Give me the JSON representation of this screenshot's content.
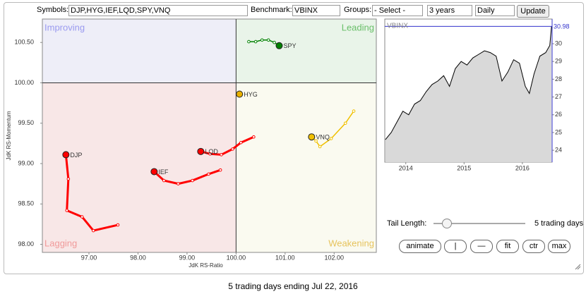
{
  "toolbar": {
    "symbols_label": "Symbols:",
    "symbols": "DJP,HYG,IEF,LQD,SPY,VNQ",
    "benchmark_label": "Benchmark:",
    "benchmark": "VBINX",
    "groups_label": "Groups:",
    "groups": "- Select -",
    "period": "3 years",
    "frequency": "Daily",
    "update": "Update"
  },
  "chart_data": [
    {
      "type": "scatter",
      "x_label": "JdK RS-Ratio",
      "y_label": "JdK RS-Momentum",
      "center": {
        "x": 100,
        "y": 100
      },
      "quadrants": [
        {
          "label": "Improving",
          "fill": "#eeeef8",
          "color": "#9a9af0"
        },
        {
          "label": "Leading",
          "fill": "#e9f4e9",
          "color": "#6abf6a"
        },
        {
          "label": "Lagging",
          "fill": "#f8e7e7",
          "color": "#f09a9a"
        },
        {
          "label": "Weakening",
          "fill": "#fafaf0",
          "color": "#e6c35c"
        }
      ],
      "xlim": [
        96.05,
        102.86
      ],
      "ylim": [
        97.9,
        100.79
      ],
      "xticks": [
        {
          "value": 97,
          "label": "97.00"
        },
        {
          "value": 98,
          "label": "98.00"
        },
        {
          "value": 99,
          "label": "99.00"
        },
        {
          "value": 100,
          "label": "100.00"
        },
        {
          "value": 101,
          "label": "101.00"
        },
        {
          "value": 102,
          "label": "102.00"
        }
      ],
      "yticks": [
        {
          "value": 98,
          "label": "98.00"
        },
        {
          "value": 98.5,
          "label": "98.50"
        },
        {
          "value": 99,
          "label": "99.00"
        },
        {
          "value": 99.5,
          "label": "99.50"
        },
        {
          "value": 100,
          "label": "100.00"
        },
        {
          "value": 100.5,
          "label": "100.50"
        }
      ],
      "series": [
        {
          "name": "SPY",
          "color": "#008000",
          "x": [
            100.26,
            100.4,
            100.53,
            100.66,
            100.78,
            100.88
          ],
          "y": [
            100.51,
            100.51,
            100.53,
            100.53,
            100.5,
            100.46
          ]
        },
        {
          "name": "HYG",
          "color": "#e8b000",
          "x": [
            100.07
          ],
          "y": [
            99.86
          ]
        },
        {
          "name": "VNQ",
          "color": "#f0c000",
          "x": [
            102.4,
            102.23,
            101.94,
            101.71,
            101.63,
            101.54
          ],
          "y": [
            99.65,
            99.5,
            99.31,
            99.21,
            99.28,
            99.33
          ]
        },
        {
          "name": "LQD",
          "color": "#ff0000",
          "x": [
            100.36,
            100.1,
            99.93,
            99.7,
            99.47,
            99.28
          ],
          "y": [
            99.33,
            99.26,
            99.18,
            99.11,
            99.12,
            99.15
          ]
        },
        {
          "name": "IEF",
          "color": "#ff0000",
          "x": [
            99.68,
            99.44,
            99.11,
            98.82,
            98.53,
            98.33
          ],
          "y": [
            98.92,
            98.87,
            98.79,
            98.75,
            98.79,
            98.9
          ]
        },
        {
          "name": "DJP",
          "color": "#ff0000",
          "x": [
            97.59,
            97.09,
            96.86,
            96.55,
            96.58,
            96.53
          ],
          "y": [
            98.24,
            98.17,
            98.34,
            98.42,
            98.81,
            99.11
          ]
        }
      ]
    },
    {
      "type": "line",
      "title": "VBINX",
      "color": "#000000",
      "fill": "#d9d9d9",
      "axis_color": "#3333cc",
      "xlim": [
        2013.64,
        2016.51
      ],
      "ylim": [
        23.33,
        31.39
      ],
      "xticks": [
        2014,
        2015,
        2016
      ],
      "yticks": [
        24,
        25,
        26,
        27,
        28,
        29,
        30
      ],
      "x": [
        2013.65,
        2013.75,
        2013.85,
        2013.95,
        2014.05,
        2014.15,
        2014.25,
        2014.35,
        2014.45,
        2014.55,
        2014.65,
        2014.75,
        2014.85,
        2014.95,
        2015.05,
        2015.15,
        2015.25,
        2015.35,
        2015.45,
        2015.55,
        2015.65,
        2015.75,
        2015.85,
        2015.95,
        2016.05,
        2016.12,
        2016.2,
        2016.3,
        2016.4,
        2016.47,
        2016.5
      ],
      "values": [
        24.6,
        25.0,
        25.6,
        26.2,
        26.0,
        26.6,
        26.8,
        27.3,
        27.7,
        27.9,
        28.2,
        27.6,
        28.6,
        29.0,
        28.8,
        29.2,
        29.4,
        29.6,
        29.5,
        29.3,
        27.9,
        28.4,
        29.1,
        28.9,
        27.6,
        27.2,
        28.3,
        29.3,
        29.5,
        29.9,
        30.98
      ]
    }
  ],
  "controls": {
    "tail_length_label": "Tail Length:",
    "tail_length": "5 trading days",
    "buttons": [
      "animate",
      "|",
      "—",
      "fit",
      "ctr",
      "max"
    ]
  },
  "footer": "5 trading days ending Jul 22, 2016"
}
